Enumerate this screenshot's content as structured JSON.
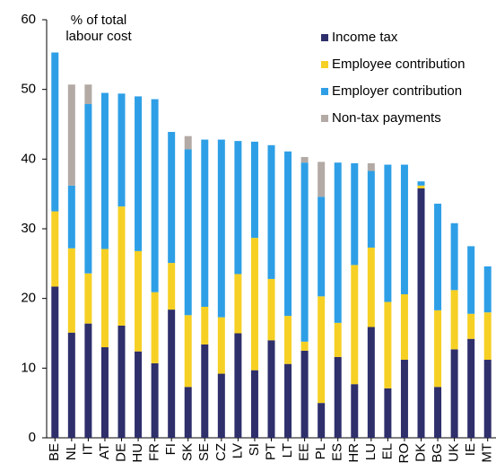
{
  "chart_data": {
    "type": "stacked_bar",
    "y_label": "% of total labour cost",
    "categories": [
      "BE",
      "NL",
      "IT",
      "AT",
      "DE",
      "HU",
      "FR",
      "FI",
      "SK",
      "SE",
      "CZ",
      "LV",
      "SI",
      "PT",
      "LT",
      "EE",
      "PL",
      "ES",
      "HR",
      "LU",
      "EL",
      "RO",
      "DK",
      "BG",
      "UK",
      "IE",
      "MT"
    ],
    "series": [
      {
        "name": "Income tax",
        "color": "#2e2f6b",
        "values": [
          21.7,
          15.1,
          16.4,
          13.0,
          16.1,
          12.4,
          10.7,
          18.4,
          7.3,
          13.4,
          9.2,
          15.0,
          9.7,
          14.0,
          10.6,
          12.5,
          5.0,
          11.6,
          7.7,
          15.9,
          7.1,
          11.2,
          35.8,
          7.3,
          12.7,
          14.2,
          11.2
        ]
      },
      {
        "name": "Employee contribution",
        "color": "#f6d024",
        "values": [
          10.8,
          12.1,
          7.2,
          14.1,
          17.1,
          14.4,
          10.2,
          6.7,
          10.3,
          5.4,
          8.1,
          8.5,
          19.0,
          8.8,
          6.9,
          1.3,
          15.3,
          4.9,
          17.1,
          11.4,
          12.4,
          9.4,
          0.4,
          11.0,
          8.5,
          3.6,
          6.8
        ]
      },
      {
        "name": "Employer contribution",
        "color": "#2e9fe6",
        "values": [
          22.8,
          9.0,
          24.3,
          22.4,
          16.2,
          22.2,
          27.7,
          18.8,
          23.8,
          24.0,
          25.5,
          19.1,
          13.8,
          19.2,
          23.6,
          25.7,
          14.3,
          23.0,
          14.6,
          11.0,
          19.7,
          18.6,
          0.6,
          15.3,
          9.6,
          9.7,
          6.6
        ]
      },
      {
        "name": "Non-tax payments",
        "color": "#b3aaa5",
        "values": [
          0,
          14.5,
          2.8,
          0,
          0,
          0,
          0,
          0,
          1.9,
          0,
          0,
          0,
          0,
          0,
          0,
          0.8,
          5.0,
          0,
          0,
          1.1,
          0,
          0,
          0,
          0,
          0,
          0,
          0
        ]
      }
    ],
    "ylim": [
      0,
      60
    ],
    "yticks": [
      0,
      10,
      20,
      30,
      40,
      50,
      60
    ],
    "grid": false,
    "legend": "top-right"
  }
}
